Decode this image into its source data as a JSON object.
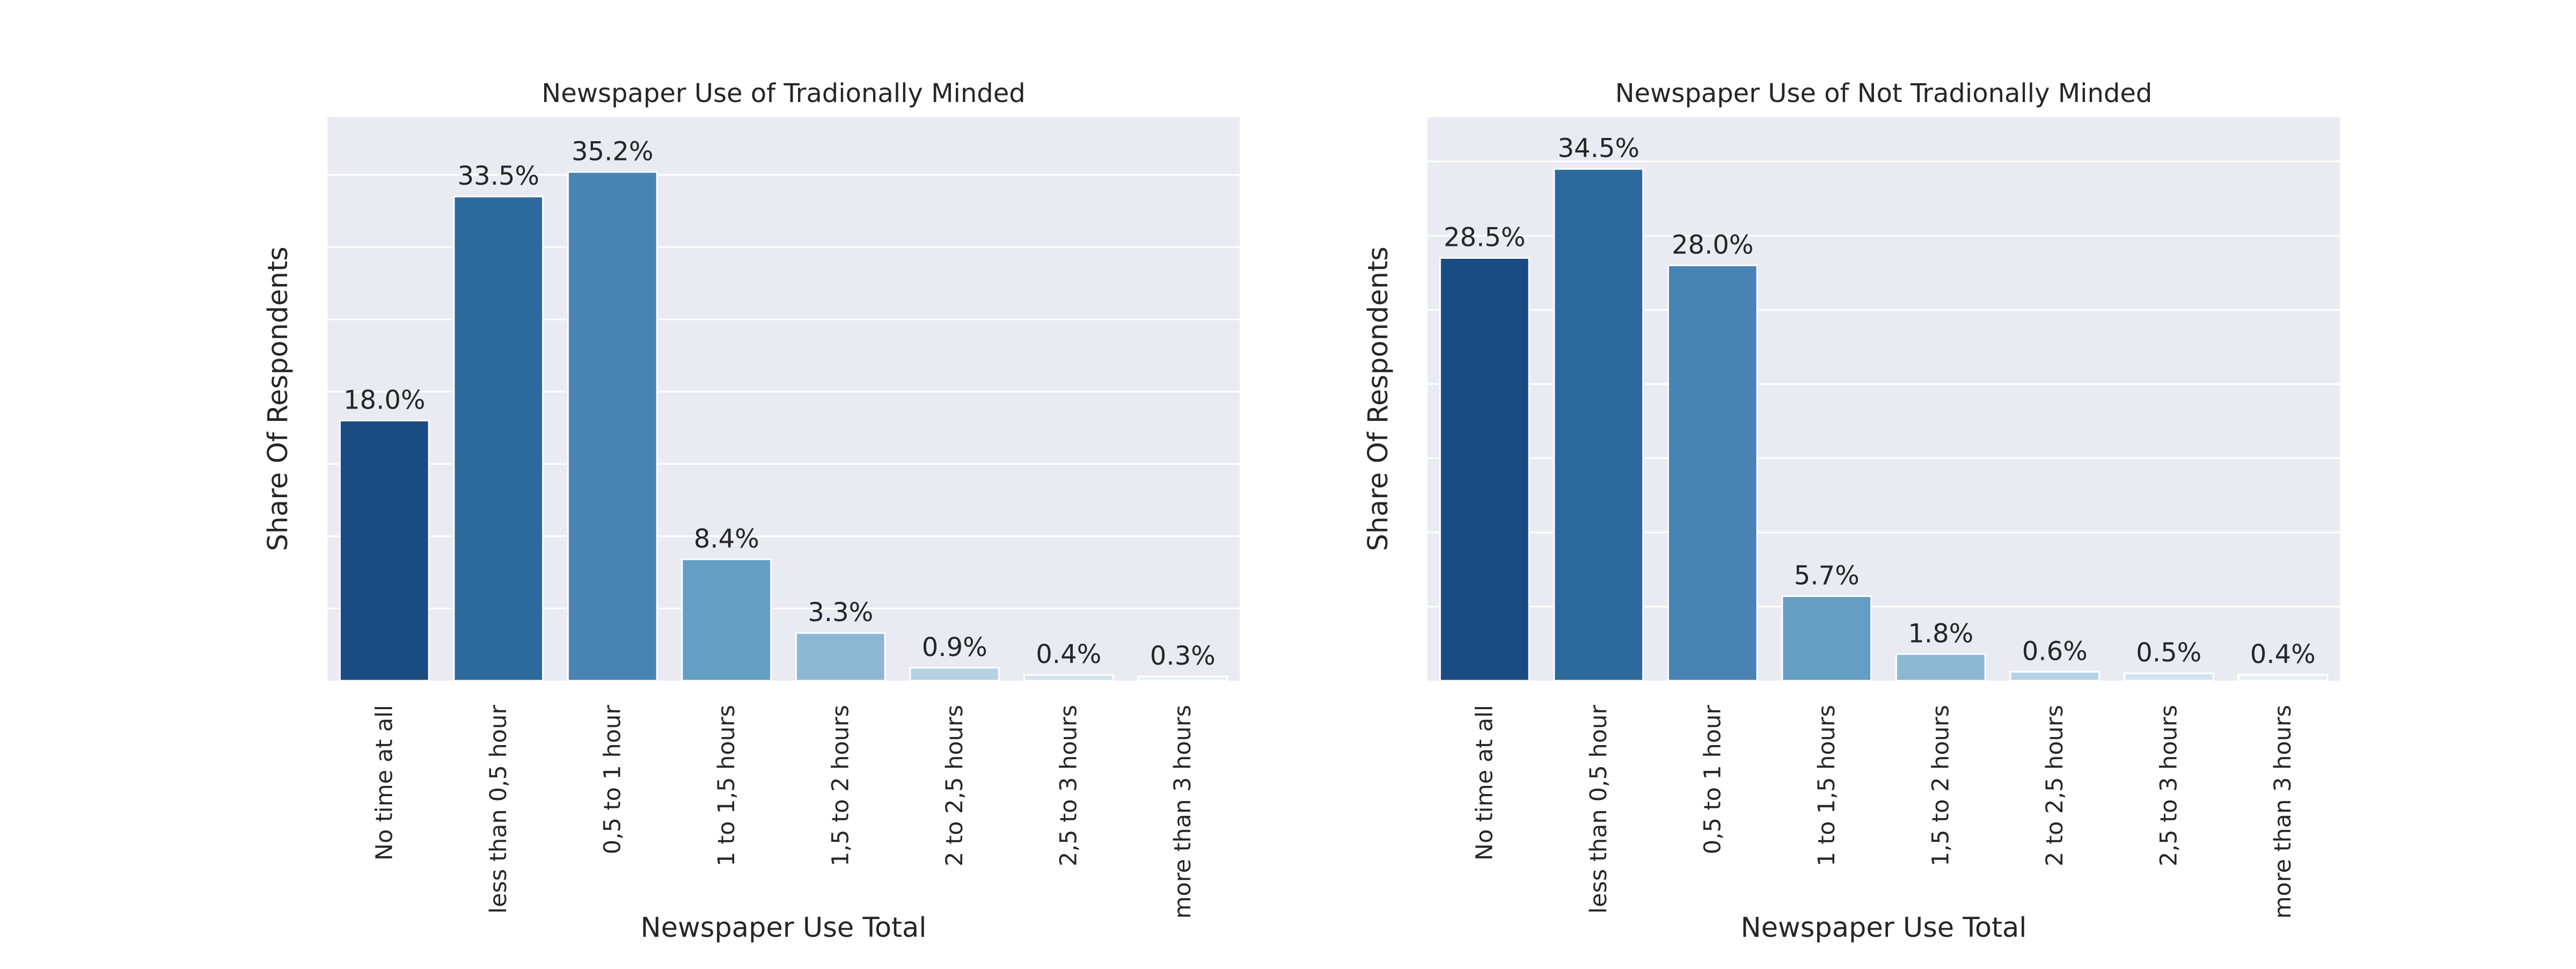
{
  "colors": {
    "background": "#ffffff",
    "plot_background": "#eaeaf2",
    "grid": "#ffffff",
    "text": "#262626",
    "bar_palette": [
      "#1a4c84",
      "#2c6a9d",
      "#4883b3",
      "#659ec4",
      "#8db8d3",
      "#b5d2e4",
      "#d3e4f0",
      "#e6f0f7"
    ]
  },
  "chart_data": [
    {
      "type": "bar",
      "title": "Newspaper Use of Tradionally Minded",
      "xlabel": "Newspaper Use Total",
      "ylabel": "Share Of Respondents",
      "categories": [
        "No time at all",
        "less than 0,5 hour",
        "0,5 to 1 hour",
        "1 to 1,5 hours",
        "1,5 to 2 hours",
        "2 to 2,5 hours",
        "2,5 to 3 hours",
        "more than 3 hours"
      ],
      "values": [
        18.0,
        33.5,
        35.2,
        8.4,
        3.3,
        0.9,
        0.4,
        0.3
      ],
      "data_labels": [
        "18.0%",
        "33.5%",
        "35.2%",
        "8.4%",
        "3.3%",
        "0.9%",
        "0.4%",
        "0.3%"
      ],
      "ylim": [
        0,
        39.0
      ],
      "ygrid_step": 5,
      "grid": true,
      "legend": "none"
    },
    {
      "type": "bar",
      "title": "Newspaper Use of Not Tradionally Minded",
      "xlabel": "Newspaper Use Total",
      "ylabel": "Share Of Respondents",
      "categories": [
        "No time at all",
        "less than 0,5 hour",
        "0,5 to 1 hour",
        "1 to 1,5 hours",
        "1,5 to 2 hours",
        "2 to 2,5 hours",
        "2,5 to 3 hours",
        "more than 3 hours"
      ],
      "values": [
        28.5,
        34.5,
        28.0,
        5.7,
        1.8,
        0.6,
        0.5,
        0.4
      ],
      "data_labels": [
        "28.5%",
        "34.5%",
        "28.0%",
        "5.7%",
        "1.8%",
        "0.6%",
        "0.5%",
        "0.4%"
      ],
      "ylim": [
        0,
        38.0
      ],
      "ygrid_step": 5,
      "grid": true,
      "legend": "none"
    }
  ]
}
